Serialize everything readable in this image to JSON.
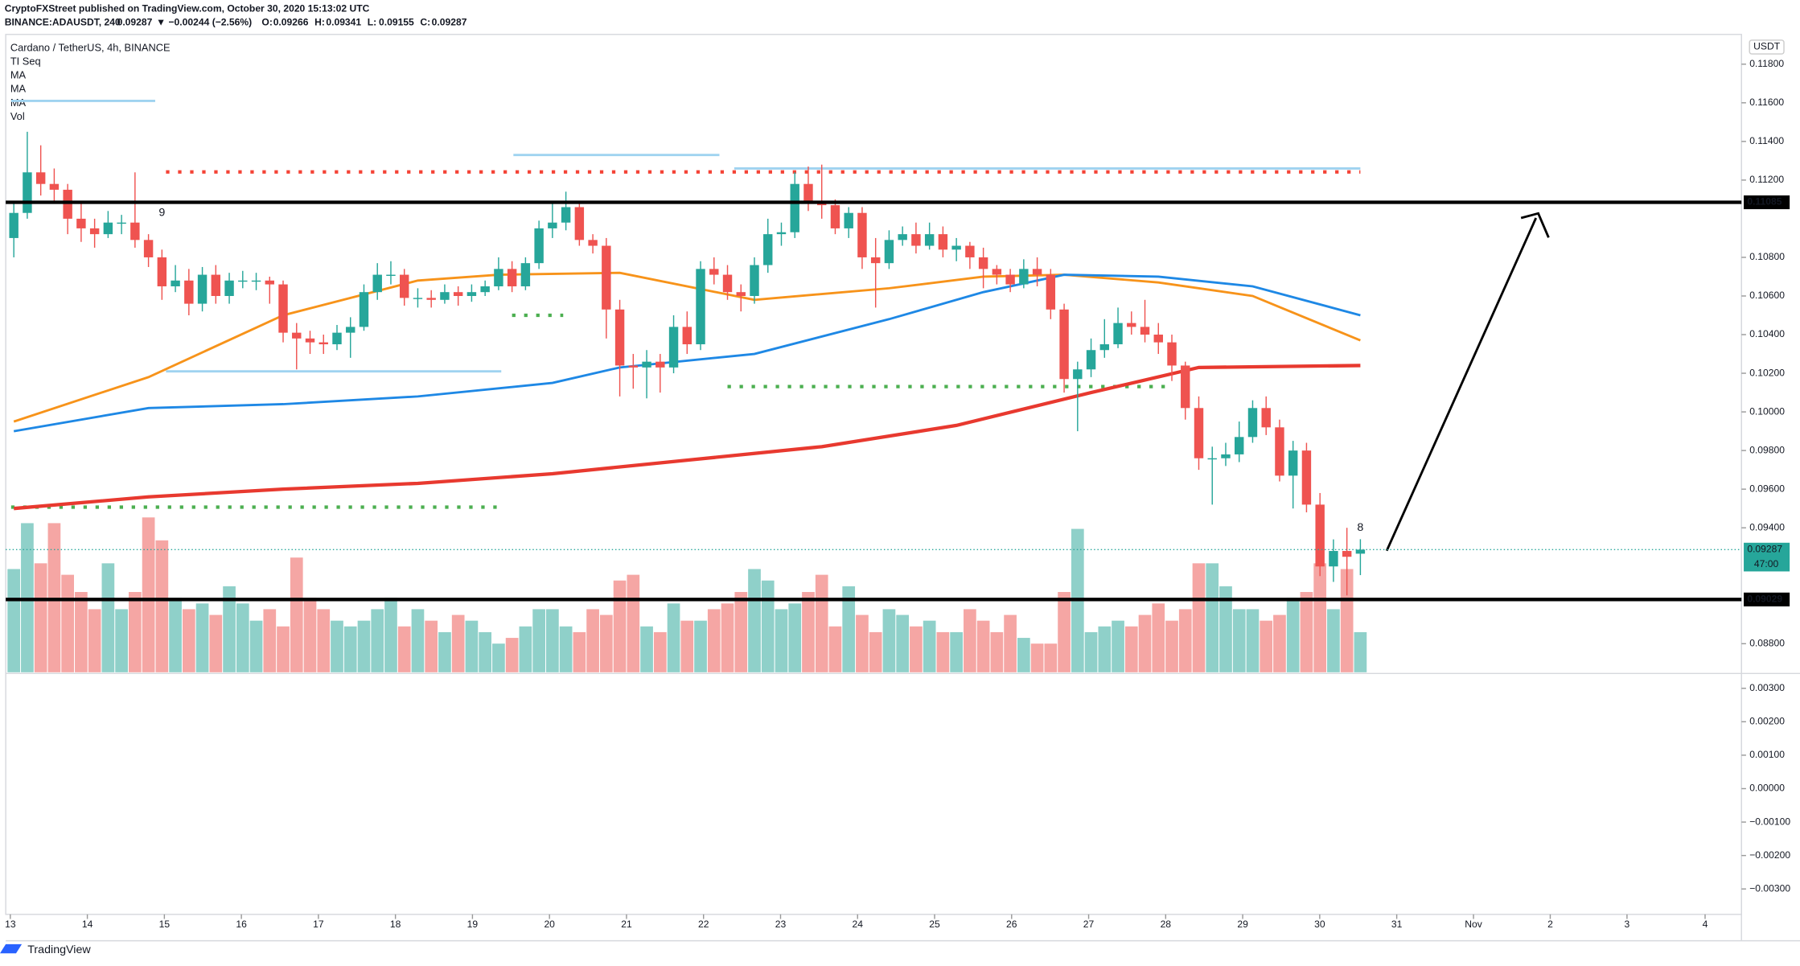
{
  "header": {
    "publisher": "CryptoFXStreet published on TradingView.com, October 30, 2020 15:13:02 UTC",
    "symbol": "BINANCE:ADAUSDT, 240",
    "last": "0.09287",
    "change": "▼ −0.00244 (−2.56%)",
    "ohlc": [
      {
        "key": "O:",
        "value": "0.09266"
      },
      {
        "key": "H:",
        "value": "0.09341"
      },
      {
        "key": "L:",
        "value": "0.09155"
      },
      {
        "key": "C:",
        "value": "0.09287"
      }
    ]
  },
  "footer": "TradingView",
  "chart_data": {
    "type": "candlestick",
    "title": "Cardano / TetherUS, 4h, BINANCE",
    "indicator_seq": "TI Seq",
    "indicator_vol": "Vol",
    "currency": "USDT",
    "up_color": "#26a69a",
    "down_color": "#ef5350",
    "volume_up_color": "#8fd0c9",
    "volume_down_color": "#f5a6a4",
    "xlim": [
      -0.6,
      128.3
    ],
    "ylim": [
      0.08652,
      0.11954
    ],
    "xticks": [
      {
        "value": -0.26,
        "label": "13"
      },
      {
        "value": 5.46,
        "label": "14"
      },
      {
        "value": 11.18,
        "label": "15"
      },
      {
        "value": 16.9,
        "label": "16"
      },
      {
        "value": 22.62,
        "label": "17"
      },
      {
        "value": 28.34,
        "label": "18"
      },
      {
        "value": 34.06,
        "label": "19"
      },
      {
        "value": 39.78,
        "label": "20"
      },
      {
        "value": 45.5,
        "label": "21"
      },
      {
        "value": 51.22,
        "label": "22"
      },
      {
        "value": 56.94,
        "label": "23"
      },
      {
        "value": 62.66,
        "label": "24"
      },
      {
        "value": 68.38,
        "label": "25"
      },
      {
        "value": 74.1,
        "label": "26"
      },
      {
        "value": 79.82,
        "label": "27"
      },
      {
        "value": 85.54,
        "label": "28"
      },
      {
        "value": 91.26,
        "label": "29"
      },
      {
        "value": 96.98,
        "label": "30"
      },
      {
        "value": 102.7,
        "label": "31"
      },
      {
        "value": 108.4,
        "label": "Nov"
      },
      {
        "value": 114.1,
        "label": "2"
      },
      {
        "value": 119.8,
        "label": "3"
      },
      {
        "value": 125.6,
        "label": "4"
      }
    ],
    "yticks": [
      {
        "value": 0.118,
        "label": "0.11800"
      },
      {
        "value": 0.116,
        "label": "0.11600"
      },
      {
        "value": 0.114,
        "label": "0.11400"
      },
      {
        "value": 0.112,
        "label": "0.11200"
      },
      {
        "value": 0.108,
        "label": "0.10800"
      },
      {
        "value": 0.106,
        "label": "0.10600"
      },
      {
        "value": 0.104,
        "label": "0.10400"
      },
      {
        "value": 0.102,
        "label": "0.10200"
      },
      {
        "value": 0.1,
        "label": "0.10000"
      },
      {
        "value": 0.098,
        "label": "0.09800"
      },
      {
        "value": 0.096,
        "label": "0.09600"
      },
      {
        "value": 0.094,
        "label": "0.09400"
      },
      {
        "value": 0.088,
        "label": "0.08800"
      }
    ],
    "candles": [
      [
        0.109,
        0.1108,
        0.108,
        0.1103
      ],
      [
        0.1103,
        0.1145,
        0.11,
        0.1124
      ],
      [
        0.1124,
        0.1138,
        0.1112,
        0.1118
      ],
      [
        0.1118,
        0.1126,
        0.1108,
        0.1115
      ],
      [
        0.1115,
        0.1118,
        0.1092,
        0.11
      ],
      [
        0.11,
        0.1108,
        0.1088,
        0.1095
      ],
      [
        0.1095,
        0.11,
        0.1085,
        0.1092
      ],
      [
        0.1092,
        0.1104,
        0.109,
        0.1098
      ],
      [
        0.1098,
        0.1102,
        0.1092,
        0.1098
      ],
      [
        0.1098,
        0.1124,
        0.1085,
        0.1089
      ],
      [
        0.1089,
        0.1092,
        0.1075,
        0.108
      ],
      [
        0.108,
        0.1084,
        0.1058,
        0.1065
      ],
      [
        0.1065,
        0.1076,
        0.1062,
        0.1068
      ],
      [
        0.1068,
        0.1074,
        0.105,
        0.1056
      ],
      [
        0.1056,
        0.1075,
        0.1052,
        0.1071
      ],
      [
        0.1071,
        0.1076,
        0.1056,
        0.106
      ],
      [
        0.106,
        0.1072,
        0.1056,
        0.1068
      ],
      [
        0.1068,
        0.1073,
        0.1064,
        0.1068
      ],
      [
        0.1068,
        0.1072,
        0.1063,
        0.1068
      ],
      [
        0.1068,
        0.107,
        0.1056,
        0.1066
      ],
      [
        0.1066,
        0.1068,
        0.1036,
        0.1041
      ],
      [
        0.1041,
        0.1046,
        0.1022,
        0.1038
      ],
      [
        0.1038,
        0.1042,
        0.103,
        0.1036
      ],
      [
        0.1036,
        0.104,
        0.103,
        0.1035
      ],
      [
        0.1035,
        0.1045,
        0.1032,
        0.1041
      ],
      [
        0.1041,
        0.1049,
        0.1028,
        0.1044
      ],
      [
        0.1044,
        0.1066,
        0.1042,
        0.1062
      ],
      [
        0.1062,
        0.1077,
        0.1058,
        0.1071
      ],
      [
        0.1071,
        0.1078,
        0.1066,
        0.1071
      ],
      [
        0.1071,
        0.1074,
        0.1055,
        0.1059
      ],
      [
        0.1059,
        0.1064,
        0.1054,
        0.1059
      ],
      [
        0.1059,
        0.1063,
        0.1054,
        0.1058
      ],
      [
        0.1058,
        0.1066,
        0.1056,
        0.1062
      ],
      [
        0.1062,
        0.1065,
        0.1055,
        0.106
      ],
      [
        0.106,
        0.1066,
        0.1057,
        0.1062
      ],
      [
        0.1062,
        0.1068,
        0.106,
        0.1065
      ],
      [
        0.1065,
        0.108,
        0.1063,
        0.1074
      ],
      [
        0.1074,
        0.1078,
        0.1062,
        0.1065
      ],
      [
        0.1065,
        0.108,
        0.1063,
        0.1077
      ],
      [
        0.1077,
        0.1099,
        0.1074,
        0.1095
      ],
      [
        0.1095,
        0.1108,
        0.109,
        0.1098
      ],
      [
        0.1098,
        0.1114,
        0.1094,
        0.1106
      ],
      [
        0.1106,
        0.1108,
        0.1086,
        0.1089
      ],
      [
        0.1089,
        0.1092,
        0.1082,
        0.1086
      ],
      [
        0.1086,
        0.109,
        0.1038,
        0.1053
      ],
      [
        0.1053,
        0.1058,
        0.1008,
        0.1024
      ],
      [
        0.1024,
        0.103,
        0.1012,
        0.1023
      ],
      [
        0.1023,
        0.1032,
        0.1007,
        0.1026
      ],
      [
        0.1026,
        0.103,
        0.101,
        0.1023
      ],
      [
        0.1023,
        0.105,
        0.102,
        0.1044
      ],
      [
        0.1044,
        0.1052,
        0.103,
        0.1035
      ],
      [
        0.1035,
        0.1078,
        0.1032,
        0.1074
      ],
      [
        0.1074,
        0.108,
        0.1066,
        0.1071
      ],
      [
        0.1071,
        0.1076,
        0.1058,
        0.1062
      ],
      [
        0.1062,
        0.1066,
        0.1052,
        0.106
      ],
      [
        0.106,
        0.108,
        0.1056,
        0.1076
      ],
      [
        0.1076,
        0.11,
        0.1072,
        0.1092
      ],
      [
        0.1092,
        0.1098,
        0.1086,
        0.1093
      ],
      [
        0.1093,
        0.1124,
        0.109,
        0.1118
      ],
      [
        0.1118,
        0.1127,
        0.1104,
        0.1109
      ],
      [
        0.1109,
        0.1128,
        0.11,
        0.1107
      ],
      [
        0.1107,
        0.111,
        0.1092,
        0.1095
      ],
      [
        0.1095,
        0.1106,
        0.109,
        0.1103
      ],
      [
        0.1103,
        0.1106,
        0.1074,
        0.108
      ],
      [
        0.108,
        0.109,
        0.1054,
        0.1077
      ],
      [
        0.1077,
        0.1094,
        0.1074,
        0.1089
      ],
      [
        0.1089,
        0.1096,
        0.1086,
        0.1092
      ],
      [
        0.1092,
        0.1098,
        0.1082,
        0.1086
      ],
      [
        0.1086,
        0.1098,
        0.1084,
        0.1092
      ],
      [
        0.1092,
        0.1096,
        0.108,
        0.1084
      ],
      [
        0.1084,
        0.109,
        0.1078,
        0.1086
      ],
      [
        0.1086,
        0.1088,
        0.1074,
        0.108
      ],
      [
        0.108,
        0.1085,
        0.1064,
        0.1074
      ],
      [
        0.1074,
        0.1076,
        0.1066,
        0.1071
      ],
      [
        0.1071,
        0.1074,
        0.1062,
        0.1066
      ],
      [
        0.1066,
        0.1079,
        0.1064,
        0.1074
      ],
      [
        0.1074,
        0.108,
        0.1065,
        0.1071
      ],
      [
        0.1071,
        0.1074,
        0.1048,
        0.1053
      ],
      [
        0.1053,
        0.1056,
        0.101,
        0.1017
      ],
      [
        0.1017,
        0.1026,
        0.099,
        0.1022
      ],
      [
        0.1022,
        0.1038,
        0.1018,
        0.1032
      ],
      [
        0.1032,
        0.1048,
        0.1028,
        0.1035
      ],
      [
        0.1035,
        0.1054,
        0.1033,
        0.1046
      ],
      [
        0.1046,
        0.1052,
        0.104,
        0.1044
      ],
      [
        0.1044,
        0.1058,
        0.1036,
        0.104
      ],
      [
        0.104,
        0.1046,
        0.103,
        0.1036
      ],
      [
        0.1036,
        0.104,
        0.1016,
        0.1024
      ],
      [
        0.1024,
        0.1026,
        0.0996,
        0.1002
      ],
      [
        0.1002,
        0.1008,
        0.097,
        0.0976
      ],
      [
        0.0976,
        0.0982,
        0.0952,
        0.0976
      ],
      [
        0.0976,
        0.0984,
        0.0972,
        0.0978
      ],
      [
        0.0978,
        0.0995,
        0.0974,
        0.0987
      ],
      [
        0.0987,
        0.1006,
        0.0984,
        0.1002
      ],
      [
        0.1002,
        0.1008,
        0.0988,
        0.0992
      ],
      [
        0.0992,
        0.0996,
        0.0964,
        0.0967
      ],
      [
        0.0967,
        0.0985,
        0.095,
        0.098
      ],
      [
        0.098,
        0.0984,
        0.0948,
        0.0952
      ],
      [
        0.0952,
        0.0958,
        0.0915,
        0.092
      ],
      [
        0.092,
        0.0934,
        0.0912,
        0.0928
      ],
      [
        0.0928,
        0.094,
        0.0905,
        0.0925
      ],
      [
        0.09266,
        0.09341,
        0.09155,
        0.09287
      ]
    ],
    "volume_lim": [
      0,
      140
    ],
    "volumes": [
      90,
      130,
      95,
      130,
      85,
      70,
      55,
      95,
      55,
      70,
      135,
      115,
      65,
      55,
      60,
      50,
      75,
      60,
      45,
      55,
      40,
      100,
      65,
      55,
      45,
      40,
      45,
      55,
      65,
      40,
      55,
      45,
      35,
      50,
      45,
      35,
      25,
      30,
      40,
      55,
      55,
      40,
      35,
      55,
      50,
      80,
      85,
      40,
      35,
      60,
      45,
      45,
      55,
      60,
      70,
      90,
      80,
      55,
      60,
      70,
      85,
      40,
      75,
      50,
      35,
      55,
      50,
      40,
      45,
      35,
      35,
      55,
      45,
      35,
      50,
      30,
      25,
      25,
      70,
      125,
      35,
      40,
      45,
      40,
      50,
      60,
      45,
      55,
      95,
      95,
      75,
      55,
      55,
      45,
      50,
      65,
      70,
      95,
      55,
      90,
      35
    ],
    "series": [
      {
        "name": "MA",
        "color": "#f7931a",
        "x": [
          0,
          10,
          20,
          30,
          36,
          45,
          55,
          65,
          72,
          78,
          85,
          92,
          100
        ],
        "values": [
          0.0995,
          0.1018,
          0.105,
          0.1068,
          0.1071,
          0.1072,
          0.1058,
          0.1064,
          0.107,
          0.1071,
          0.1067,
          0.106,
          0.1037
        ]
      },
      {
        "name": "MA",
        "color": "#1e88e5",
        "x": [
          0,
          10,
          20,
          30,
          40,
          45,
          55,
          65,
          72,
          78,
          85,
          92,
          100
        ],
        "values": [
          0.099,
          0.1002,
          0.1004,
          0.1008,
          0.1015,
          0.1023,
          0.103,
          0.1048,
          0.1062,
          0.1071,
          0.107,
          0.1065,
          0.105
        ]
      },
      {
        "name": "MA",
        "color": "#e8392f",
        "x": [
          0,
          10,
          20,
          30,
          40,
          50,
          60,
          70,
          80,
          88,
          100
        ],
        "values": [
          0.095,
          0.0956,
          0.096,
          0.0963,
          0.0968,
          0.0975,
          0.0982,
          0.0993,
          0.101,
          0.1023,
          0.1024
        ]
      }
    ],
    "levels": [
      0.11085,
      0.09029
    ],
    "last_price": 0.09287,
    "countdown": "47:00",
    "dotted_levels": [
      {
        "value": 0.11242,
        "x": [
          11.3,
          100
        ],
        "color": "#f44336"
      },
      {
        "value": 0.105,
        "x": [
          37,
          40.8
        ],
        "color": "#4caf50"
      },
      {
        "value": 0.10131,
        "x": [
          53,
          85.5
        ],
        "color": "#4caf50"
      },
      {
        "value": 0.09507,
        "x": [
          -0.2,
          36.2
        ],
        "color": "#4caf50"
      }
    ],
    "blue_levels": [
      {
        "value": 0.1161,
        "x": [
          -0.2,
          10.5
        ]
      },
      {
        "value": 0.1133,
        "x": [
          37.1,
          52.4
        ]
      },
      {
        "value": 0.1126,
        "x": [
          53.5,
          100
        ]
      },
      {
        "value": 0.1021,
        "x": [
          11.3,
          36.2
        ]
      }
    ],
    "seq_labels": [
      {
        "index": 11,
        "value": 0.1103,
        "label": "9"
      },
      {
        "index": 100,
        "value": 0.094,
        "label": "8"
      }
    ],
    "lower_pane": {
      "ylim": [
        -0.00376,
        0.00341
      ],
      "yticks": [
        {
          "value": 0.003,
          "label": "0.00300"
        },
        {
          "value": 0.002,
          "label": "0.00200"
        },
        {
          "value": 0.001,
          "label": "0.00100"
        },
        {
          "value": 0,
          "label": "0.00000"
        },
        {
          "value": -0.001,
          "label": "−0.00100"
        },
        {
          "value": -0.002,
          "label": "−0.00200"
        },
        {
          "value": -0.003,
          "label": "−0.00300"
        }
      ]
    }
  }
}
